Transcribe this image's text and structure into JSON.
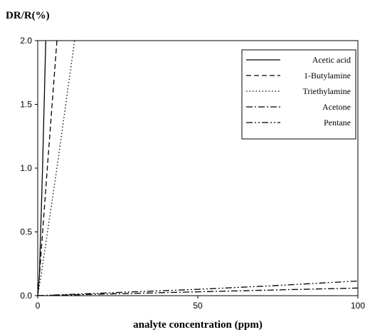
{
  "chart_data": {
    "type": "line",
    "title": "",
    "ylabel": "DR/R(%)",
    "xlabel": "analyte concentration (ppm)",
    "xlim": [
      0,
      100
    ],
    "ylim": [
      0,
      2.0
    ],
    "x_ticks": [
      "0",
      "50",
      "100"
    ],
    "y_ticks": [
      "0.0",
      "0.5",
      "1.0",
      "1.5",
      "2.0"
    ],
    "grid": false,
    "legend_position": "top-right",
    "series": [
      {
        "name": "Acetic acid",
        "dash": "solid",
        "x": [
          0,
          0.5,
          1.5,
          2.5
        ],
        "y": [
          0,
          0.15,
          1.0,
          2.0
        ]
      },
      {
        "name": "1-Butylamine",
        "dash": "dashed",
        "x": [
          0,
          0.5,
          3,
          6
        ],
        "y": [
          0,
          0.15,
          1.0,
          2.0
        ]
      },
      {
        "name": "Triethylamine",
        "dash": "dotted",
        "x": [
          0,
          1,
          6,
          11.5
        ],
        "y": [
          0,
          0.15,
          1.0,
          2.0
        ]
      },
      {
        "name": "Acetone",
        "dash": "dashdot",
        "x": [
          0,
          25,
          50,
          75,
          100
        ],
        "y": [
          0,
          0.015,
          0.03,
          0.045,
          0.06
        ]
      },
      {
        "name": "Pentane",
        "dash": "dashdotdot",
        "x": [
          0,
          25,
          50,
          75,
          100
        ],
        "y": [
          0,
          0.025,
          0.05,
          0.08,
          0.115
        ]
      }
    ]
  }
}
